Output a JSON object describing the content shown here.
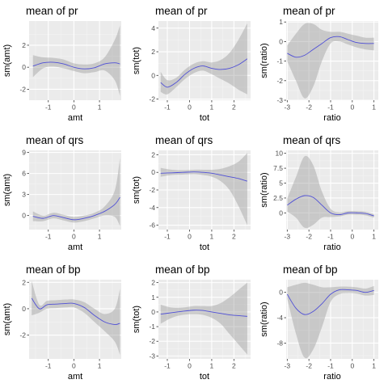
{
  "chart_data": [
    {
      "type": "line",
      "title": "mean of pr",
      "xlabel": "amt",
      "ylabel": "sm(amt)",
      "xlim": [
        -1.75,
        1.85
      ],
      "ylim": [
        -3.0,
        4.2
      ],
      "xticks": [
        -1,
        0,
        1
      ],
      "yticks": [
        -2,
        0,
        2
      ],
      "x": [
        -1.6,
        -1.2,
        -0.8,
        -0.4,
        0,
        0.4,
        0.8,
        1.2,
        1.6,
        1.8
      ],
      "y": [
        0.1,
        0.4,
        0.45,
        0.3,
        0.0,
        -0.15,
        -0.05,
        0.3,
        0.4,
        0.3
      ],
      "lower": [
        -0.9,
        -0.1,
        0.05,
        -0.1,
        -0.35,
        -0.55,
        -0.45,
        -0.3,
        -1.2,
        -2.6
      ],
      "upper": [
        1.1,
        0.9,
        0.85,
        0.7,
        0.35,
        0.25,
        0.35,
        0.9,
        2.5,
        3.8
      ]
    },
    {
      "type": "line",
      "title": "mean of pr",
      "xlabel": "tot",
      "ylabel": "sm(tot)",
      "xlim": [
        -1.4,
        2.75
      ],
      "ylim": [
        -2.1,
        4.6
      ],
      "xticks": [
        -1,
        0,
        1,
        2
      ],
      "yticks": [
        -2,
        0,
        2,
        4
      ],
      "x": [
        -1.3,
        -1.0,
        -0.6,
        -0.2,
        0.2,
        0.6,
        1.0,
        1.4,
        1.8,
        2.2,
        2.6
      ],
      "y": [
        -0.6,
        -1.0,
        -0.6,
        0.1,
        0.6,
        0.8,
        0.6,
        0.5,
        0.6,
        0.9,
        1.4
      ],
      "lower": [
        -1.4,
        -1.6,
        -1.0,
        -0.3,
        0.2,
        0.4,
        0.1,
        -0.3,
        -0.7,
        -1.2,
        -1.6
      ],
      "upper": [
        0.3,
        -0.4,
        -0.2,
        0.5,
        1.0,
        1.2,
        1.1,
        1.3,
        1.9,
        3.0,
        4.4
      ]
    },
    {
      "type": "line",
      "title": "mean of pr",
      "xlabel": "ratio",
      "ylabel": "sm(ratio)",
      "xlim": [
        -3.05,
        1.2
      ],
      "ylim": [
        -3.0,
        1.05
      ],
      "xticks": [
        -3,
        -2,
        -1,
        0,
        1
      ],
      "yticks": [
        -3,
        -2,
        -1,
        0,
        1
      ],
      "x": [
        -3.0,
        -2.6,
        -2.2,
        -1.8,
        -1.4,
        -1.0,
        -0.6,
        -0.2,
        0.2,
        0.6,
        1.0
      ],
      "y": [
        -0.6,
        -0.8,
        -0.7,
        -0.4,
        -0.1,
        0.2,
        0.25,
        0.1,
        -0.05,
        -0.1,
        -0.1
      ],
      "lower": [
        -1.0,
        -2.0,
        -2.9,
        -2.3,
        -1.0,
        -0.1,
        0.0,
        -0.15,
        -0.3,
        -0.4,
        -0.45
      ],
      "upper": [
        -0.2,
        0.4,
        0.9,
        0.9,
        0.6,
        0.5,
        0.5,
        0.4,
        0.3,
        0.2,
        0.2
      ]
    },
    {
      "type": "line",
      "title": "mean of qrs",
      "xlabel": "amt",
      "ylabel": "sm(amt)",
      "xlim": [
        -1.75,
        1.85
      ],
      "ylim": [
        -2.0,
        9.3
      ],
      "xticks": [
        -1,
        0,
        1
      ],
      "yticks": [
        0,
        3,
        6,
        9
      ],
      "x": [
        -1.6,
        -1.2,
        -0.8,
        -0.4,
        0,
        0.4,
        0.8,
        1.2,
        1.6,
        1.8
      ],
      "y": [
        -0.1,
        -0.4,
        0.0,
        -0.3,
        -0.6,
        -0.4,
        0.0,
        0.6,
        1.6,
        2.6
      ],
      "lower": [
        -0.8,
        -0.8,
        -0.4,
        -0.7,
        -1.0,
        -0.8,
        -0.4,
        0.0,
        -0.2,
        -1.5
      ],
      "upper": [
        0.6,
        0.0,
        0.4,
        0.1,
        -0.2,
        0.0,
        0.4,
        1.3,
        3.6,
        8.2
      ]
    },
    {
      "type": "line",
      "title": "mean of qrs",
      "xlabel": "tot",
      "ylabel": "sm(tot)",
      "xlim": [
        -1.4,
        2.75
      ],
      "ylim": [
        -6.5,
        2.5
      ],
      "xticks": [
        -1,
        0,
        1,
        2
      ],
      "yticks": [
        -6,
        -4,
        -2,
        0,
        2
      ],
      "x": [
        -1.3,
        -0.8,
        -0.3,
        0.2,
        0.6,
        1.0,
        1.4,
        1.8,
        2.2,
        2.6
      ],
      "y": [
        -0.1,
        -0.05,
        0.0,
        0.05,
        0.0,
        -0.1,
        -0.3,
        -0.5,
        -0.7,
        -1.0
      ],
      "lower": [
        -0.5,
        -0.3,
        -0.25,
        -0.2,
        -0.3,
        -0.5,
        -1.0,
        -2.0,
        -3.8,
        -6.0
      ],
      "upper": [
        0.5,
        0.3,
        0.25,
        0.3,
        0.3,
        0.3,
        0.4,
        0.7,
        1.2,
        2.2
      ]
    },
    {
      "type": "line",
      "title": "mean of qrs",
      "xlabel": "ratio",
      "ylabel": "sm(ratio)",
      "xlim": [
        -3.05,
        1.2
      ],
      "ylim": [
        -2.8,
        10.5
      ],
      "xticks": [
        -3,
        -2,
        -1,
        0,
        1
      ],
      "yticks": [
        0,
        2.5,
        5,
        7.5,
        10
      ],
      "x": [
        -3.0,
        -2.6,
        -2.2,
        -1.8,
        -1.4,
        -1.0,
        -0.6,
        -0.2,
        0.2,
        0.6,
        1.0
      ],
      "y": [
        1.3,
        2.3,
        2.9,
        2.6,
        1.3,
        0.0,
        -0.3,
        0.0,
        0.0,
        -0.1,
        -0.5
      ],
      "lower": [
        0.2,
        -0.8,
        -2.5,
        -2.0,
        -0.8,
        -0.7,
        -0.6,
        -0.3,
        -0.3,
        -0.4,
        -0.8
      ],
      "upper": [
        2.4,
        6.0,
        9.5,
        8.0,
        3.6,
        0.7,
        0.1,
        0.3,
        0.3,
        0.2,
        -0.2
      ]
    },
    {
      "type": "line",
      "title": "mean of bp",
      "xlabel": "amt",
      "ylabel": "sm(amt)",
      "xlim": [
        -1.75,
        1.85
      ],
      "ylim": [
        -3.8,
        2.2
      ],
      "xticks": [
        -1,
        0,
        1
      ],
      "yticks": [
        -2,
        0,
        2
      ],
      "x": [
        -1.65,
        -1.35,
        -1.05,
        -0.7,
        -0.3,
        0,
        0.4,
        0.8,
        1.2,
        1.6,
        1.8
      ],
      "y": [
        0.8,
        0.0,
        0.3,
        0.35,
        0.4,
        0.4,
        0.1,
        -0.5,
        -1.0,
        -1.2,
        -1.1
      ],
      "lower": [
        -0.5,
        -0.3,
        0.0,
        0.05,
        0.1,
        0.1,
        -0.3,
        -1.0,
        -1.7,
        -2.5,
        -3.5
      ],
      "upper": [
        2.1,
        0.3,
        0.6,
        0.65,
        0.7,
        0.7,
        0.5,
        0.0,
        -0.4,
        0.0,
        1.5
      ]
    },
    {
      "type": "line",
      "title": "mean of bp",
      "xlabel": "tot",
      "ylabel": "sm(tot)",
      "xlim": [
        -1.4,
        2.75
      ],
      "ylim": [
        -3.2,
        2.2
      ],
      "xticks": [
        -1,
        0,
        1,
        2
      ],
      "yticks": [
        -3,
        -2,
        -1,
        0,
        1,
        2
      ],
      "x": [
        -1.3,
        -0.8,
        -0.3,
        0.2,
        0.6,
        1.0,
        1.4,
        1.8,
        2.2,
        2.6
      ],
      "y": [
        -0.15,
        -0.05,
        0.05,
        0.12,
        0.1,
        0.0,
        -0.1,
        -0.2,
        -0.25,
        -0.3
      ],
      "lower": [
        -0.8,
        -0.4,
        -0.2,
        -0.15,
        -0.2,
        -0.4,
        -0.8,
        -1.5,
        -2.2,
        -2.9
      ],
      "upper": [
        0.5,
        0.3,
        0.3,
        0.4,
        0.4,
        0.4,
        0.6,
        1.0,
        1.5,
        2.0
      ]
    },
    {
      "type": "line",
      "title": "mean of bp",
      "xlabel": "ratio",
      "ylabel": "sm(ratio)",
      "xlim": [
        -3.05,
        1.2
      ],
      "ylim": [
        -10.5,
        2.0
      ],
      "xticks": [
        -3,
        -2,
        -1,
        0,
        1
      ],
      "yticks": [
        -8,
        -4,
        0
      ],
      "x": [
        -3.0,
        -2.6,
        -2.2,
        -1.8,
        -1.4,
        -1.0,
        -0.6,
        -0.2,
        0.2,
        0.6,
        1.0
      ],
      "y": [
        -0.3,
        -2.5,
        -3.5,
        -3.0,
        -1.8,
        -0.3,
        0.4,
        0.4,
        0.3,
        0.0,
        0.3
      ],
      "lower": [
        -1.0,
        -6.5,
        -10.3,
        -9.0,
        -5.5,
        -1.5,
        -0.3,
        -0.1,
        -0.2,
        -0.5,
        -0.4
      ],
      "upper": [
        0.8,
        1.2,
        1.5,
        1.2,
        0.8,
        0.8,
        0.9,
        0.9,
        0.8,
        0.6,
        1.0
      ]
    }
  ]
}
